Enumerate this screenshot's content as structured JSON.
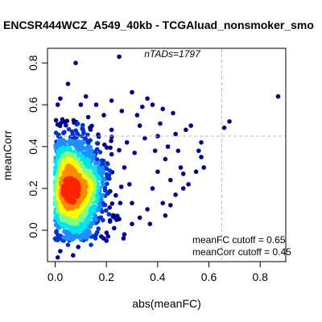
{
  "chart_data": {
    "type": "scatter",
    "title": "ENCSR444WCZ_A549_40kb - TCGAluad_nonsmoker_smo",
    "xlabel": "abs(meanFC)",
    "ylabel": "meanCorr",
    "xlim": [
      -0.03,
      0.9
    ],
    "ylim": [
      -0.15,
      0.87
    ],
    "x_ticks": [
      0.0,
      0.2,
      0.4,
      0.6,
      0.8
    ],
    "x_tick_labels": [
      "0.0",
      "0.2",
      "0.4",
      "0.6",
      "0.8"
    ],
    "y_ticks": [
      0.0,
      0.2,
      0.4,
      0.6,
      0.8
    ],
    "y_tick_labels": [
      "0.0",
      "0.2",
      "0.4",
      "0.6",
      "0.8"
    ],
    "grid": false,
    "density_coloring": true,
    "color_scale": [
      "#00008b",
      "#0033cc",
      "#1f8fff",
      "#00e5ee",
      "#7fff7f",
      "#ffff00",
      "#ff8c00",
      "#ff2400"
    ],
    "annotations": {
      "ntads": "nTADs=1797",
      "meanfc_cutoff": "meanFC cutoff = 0.65",
      "meancorr_cutoff": "meanCorr cutoff = 0.45"
    },
    "cutoffs": {
      "meanFC": 0.65,
      "meanCorr": 0.45
    },
    "n_points": 1797,
    "bulk_distribution": {
      "x_center": 0.07,
      "y_center": 0.2,
      "x_spread": 0.06,
      "y_spread": 0.12
    },
    "outliers": [
      {
        "x": 0.87,
        "y": 0.64
      },
      {
        "x": 0.68,
        "y": 0.52
      },
      {
        "x": 0.66,
        "y": 0.49
      },
      {
        "x": 0.57,
        "y": 0.42
      },
      {
        "x": 0.57,
        "y": 0.35
      },
      {
        "x": 0.58,
        "y": 0.3
      },
      {
        "x": 0.56,
        "y": 0.38
      },
      {
        "x": 0.53,
        "y": 0.5
      },
      {
        "x": 0.51,
        "y": 0.48
      },
      {
        "x": 0.46,
        "y": 0.56
      },
      {
        "x": 0.47,
        "y": 0.46
      },
      {
        "x": 0.5,
        "y": 0.27
      },
      {
        "x": 0.52,
        "y": 0.22
      },
      {
        "x": 0.5,
        "y": 0.2
      },
      {
        "x": 0.47,
        "y": 0.17
      },
      {
        "x": 0.45,
        "y": 0.24
      },
      {
        "x": 0.42,
        "y": 0.58
      },
      {
        "x": 0.41,
        "y": 0.51
      },
      {
        "x": 0.4,
        "y": 0.45
      },
      {
        "x": 0.38,
        "y": 0.6
      },
      {
        "x": 0.36,
        "y": 0.63
      },
      {
        "x": 0.34,
        "y": 0.59
      },
      {
        "x": 0.32,
        "y": 0.55
      },
      {
        "x": 0.33,
        "y": 0.5
      },
      {
        "x": 0.3,
        "y": 0.66
      },
      {
        "x": 0.25,
        "y": 0.83
      },
      {
        "x": 0.22,
        "y": 0.62
      },
      {
        "x": 0.26,
        "y": 0.57
      },
      {
        "x": 0.08,
        "y": 0.8
      },
      {
        "x": 0.05,
        "y": 0.7
      },
      {
        "x": 0.44,
        "y": 0.4
      },
      {
        "x": 0.43,
        "y": 0.34
      },
      {
        "x": 0.4,
        "y": 0.28
      },
      {
        "x": 0.42,
        "y": 0.13
      },
      {
        "x": 0.38,
        "y": 0.2
      },
      {
        "x": 0.36,
        "y": 0.1
      },
      {
        "x": 0.33,
        "y": 0.06
      },
      {
        "x": 0.3,
        "y": 0.13
      },
      {
        "x": 0.39,
        "y": 0.38
      },
      {
        "x": 0.35,
        "y": 0.44
      },
      {
        "x": 0.37,
        "y": 0.03
      },
      {
        "x": 0.3,
        "y": 0.03
      },
      {
        "x": 0.27,
        "y": -0.02
      },
      {
        "x": 0.2,
        "y": -0.05
      },
      {
        "x": 0.14,
        "y": -0.07
      },
      {
        "x": 0.09,
        "y": -0.08
      },
      {
        "x": 0.05,
        "y": -0.07
      },
      {
        "x": 0.02,
        "y": -0.1
      },
      {
        "x": 0.01,
        "y": -0.13
      },
      {
        "x": 0.07,
        "y": -0.12
      },
      {
        "x": 0.0,
        "y": -0.04
      },
      {
        "x": 0.29,
        "y": 0.22
      },
      {
        "x": 0.27,
        "y": 0.3
      },
      {
        "x": 0.31,
        "y": 0.37
      },
      {
        "x": 0.28,
        "y": 0.42
      },
      {
        "x": 0.45,
        "y": 0.12
      },
      {
        "x": 0.49,
        "y": 0.3
      },
      {
        "x": 0.55,
        "y": 0.28
      },
      {
        "x": 0.48,
        "y": 0.38
      },
      {
        "x": 0.43,
        "y": 0.07
      },
      {
        "x": 0.24,
        "y": 0.05
      },
      {
        "x": 0.22,
        "y": 0.48
      },
      {
        "x": 0.19,
        "y": 0.55
      },
      {
        "x": 0.16,
        "y": 0.6
      },
      {
        "x": 0.12,
        "y": 0.64
      },
      {
        "x": 0.1,
        "y": 0.6
      },
      {
        "x": 0.02,
        "y": 0.63
      },
      {
        "x": 0.01,
        "y": 0.6
      },
      {
        "x": 0.18,
        "y": -0.03
      },
      {
        "x": 0.23,
        "y": 0.01
      }
    ]
  }
}
